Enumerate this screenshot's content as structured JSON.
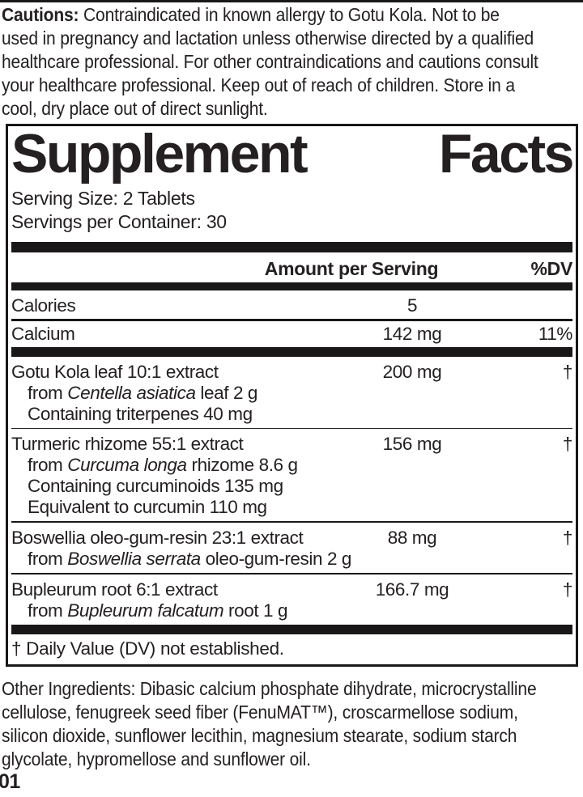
{
  "colors": {
    "ink": "#242021",
    "bar": "#1a1718",
    "background": "#ffffff"
  },
  "cautions": {
    "label": "Cautions:",
    "lines": [
      "Contraindicated in known allergy to Gotu Kola. Not to be",
      "used in pregnancy and lactation unless otherwise directed by a qualified",
      "healthcare professional. For other contraindications and cautions consult",
      "your healthcare professional. Keep out of reach of children. Store in a",
      "cool, dry place out of direct sunlight."
    ]
  },
  "panel": {
    "title": {
      "word1": "Supplement",
      "word2": "Facts"
    },
    "serving_size": "Serving Size: 2 Tablets",
    "servings_per_container": "Servings per Container: 30",
    "columns": {
      "amount": "Amount per Serving",
      "dv": "%DV"
    },
    "rows": [
      {
        "name": "Calories",
        "amount": "5",
        "dv": ""
      },
      {
        "name": "Calcium",
        "amount": "142 mg",
        "dv": "11%"
      }
    ],
    "groups": [
      {
        "name": "Gotu Kola leaf 10:1 extract",
        "amount": "200 mg",
        "dv": "†",
        "sub": [
          {
            "pre": "from ",
            "italic": "Centella asiatica",
            "post": " leaf 2 g"
          },
          {
            "pre": "Containing triterpenes 40 mg",
            "italic": "",
            "post": ""
          }
        ]
      },
      {
        "name": "Turmeric rhizome 55:1 extract",
        "amount": "156 mg",
        "dv": "†",
        "sub": [
          {
            "pre": "from ",
            "italic": "Curcuma longa",
            "post": " rhizome 8.6 g"
          },
          {
            "pre": "Containing curcuminoids 135 mg",
            "italic": "",
            "post": ""
          },
          {
            "pre": "Equivalent to curcumin 110 mg",
            "italic": "",
            "post": ""
          }
        ]
      },
      {
        "name": "Boswellia oleo-gum-resin 23:1 extract",
        "amount": "88 mg",
        "dv": "†",
        "sub": [
          {
            "pre": "from ",
            "italic": "Boswellia serrata",
            "post": " oleo-gum-resin 2 g"
          }
        ]
      },
      {
        "name": "Bupleurum root 6:1 extract",
        "amount": "166.7 mg",
        "dv": "†",
        "sub": [
          {
            "pre": "from ",
            "italic": "Bupleurum falcatum",
            "post": " root 1 g"
          }
        ]
      }
    ],
    "footnote": "† Daily Value (DV) not established."
  },
  "other_ingredients": {
    "lines": [
      "Other Ingredients: Dibasic calcium phosphate dihydrate, microcrystalline",
      "cellulose, fenugreek seed fiber (FenuMAT™), croscarmellose sodium,",
      "silicon dioxide, sunflower lecithin, magnesium stearate, sodium starch",
      "glycolate, hypromellose and sunflower oil."
    ]
  },
  "lot_code": "01"
}
